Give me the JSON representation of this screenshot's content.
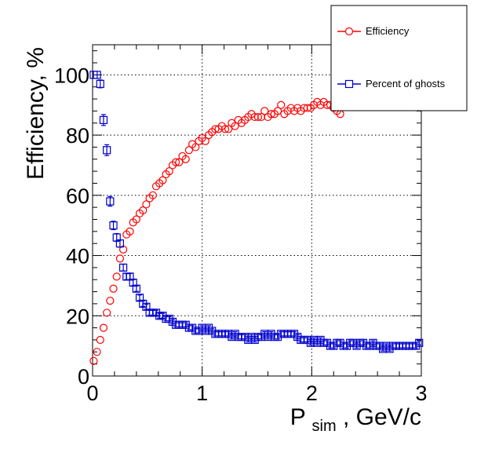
{
  "chart_data": {
    "type": "scatter",
    "title": "",
    "xlabel": {
      "main": "P",
      "sub": "sim",
      "rest": ", GeV/c"
    },
    "ylabel": "Efficiency, %",
    "xlim": [
      0,
      3
    ],
    "ylim": [
      0,
      110
    ],
    "xticks": [
      "0",
      "1",
      "2",
      "3"
    ],
    "yticks": [
      "0",
      "20",
      "40",
      "60",
      "80",
      "100"
    ],
    "grid": true,
    "legend_position": "top-right",
    "series": [
      {
        "name": "Efficiency",
        "color": "#ff0000",
        "marker": "circle",
        "x": [
          0.01,
          0.04,
          0.07,
          0.1,
          0.13,
          0.16,
          0.19,
          0.22,
          0.25,
          0.28,
          0.31,
          0.34,
          0.37,
          0.4,
          0.43,
          0.46,
          0.49,
          0.52,
          0.55,
          0.58,
          0.61,
          0.64,
          0.67,
          0.7,
          0.73,
          0.76,
          0.79,
          0.82,
          0.85,
          0.88,
          0.91,
          0.94,
          0.97,
          1.0,
          1.03,
          1.06,
          1.09,
          1.12,
          1.15,
          1.18,
          1.21,
          1.24,
          1.27,
          1.3,
          1.33,
          1.36,
          1.39,
          1.42,
          1.45,
          1.48,
          1.51,
          1.54,
          1.57,
          1.6,
          1.63,
          1.66,
          1.69,
          1.72,
          1.75,
          1.78,
          1.81,
          1.84,
          1.87,
          1.9,
          1.93,
          1.96,
          1.99,
          2.02,
          2.05,
          2.08,
          2.11,
          2.14,
          2.17,
          2.2,
          2.23,
          2.26
        ],
        "values": [
          5,
          8,
          12,
          16,
          21,
          25,
          29,
          33,
          39,
          42,
          47,
          48,
          51,
          52,
          54,
          55,
          57,
          59,
          60,
          63,
          64,
          65,
          67,
          68,
          70,
          71,
          71,
          73,
          72,
          75,
          77,
          76,
          78,
          79,
          78,
          80,
          81,
          82,
          82,
          83,
          82,
          82,
          84,
          83,
          85,
          84,
          85,
          86,
          87,
          86,
          86,
          86,
          88,
          86,
          87,
          87,
          88,
          90,
          87,
          88,
          89,
          88,
          89,
          88,
          89,
          89,
          89,
          90,
          91,
          90,
          91,
          90,
          90,
          89,
          88,
          87
        ],
        "errors": []
      },
      {
        "name": "Percent of ghosts",
        "color": "#0000cc",
        "marker": "square",
        "x": [
          0.01,
          0.04,
          0.07,
          0.1,
          0.13,
          0.16,
          0.19,
          0.22,
          0.25,
          0.28,
          0.31,
          0.34,
          0.37,
          0.4,
          0.43,
          0.46,
          0.49,
          0.52,
          0.55,
          0.58,
          0.61,
          0.64,
          0.67,
          0.7,
          0.73,
          0.76,
          0.79,
          0.82,
          0.85,
          0.88,
          0.91,
          0.94,
          0.97,
          1.0,
          1.03,
          1.06,
          1.09,
          1.12,
          1.15,
          1.18,
          1.21,
          1.24,
          1.27,
          1.3,
          1.33,
          1.36,
          1.39,
          1.42,
          1.45,
          1.48,
          1.51,
          1.54,
          1.57,
          1.6,
          1.63,
          1.66,
          1.69,
          1.72,
          1.75,
          1.78,
          1.81,
          1.84,
          1.87,
          1.9,
          1.93,
          1.96,
          1.99,
          2.02,
          2.05,
          2.08,
          2.11,
          2.14,
          2.17,
          2.2,
          2.23,
          2.26,
          2.29,
          2.32,
          2.35,
          2.38,
          2.41,
          2.44,
          2.47,
          2.5,
          2.53,
          2.56,
          2.59,
          2.62,
          2.65,
          2.68,
          2.71,
          2.74,
          2.77,
          2.8,
          2.83,
          2.86,
          2.89,
          2.92,
          2.95,
          2.98
        ],
        "values": [
          100,
          100,
          97,
          85,
          75,
          58,
          50,
          46,
          44,
          36,
          33,
          33,
          31,
          29,
          26,
          24,
          23,
          21,
          21,
          21,
          20,
          20,
          19,
          19,
          18,
          17,
          17,
          17,
          17,
          16,
          16,
          15,
          15,
          16,
          15,
          16,
          15,
          14,
          14,
          14,
          14,
          14,
          13,
          14,
          13,
          13,
          13,
          12,
          13,
          12,
          13,
          13,
          14,
          13,
          14,
          13,
          13,
          14,
          14,
          14,
          14,
          14,
          13,
          12,
          12,
          12,
          11,
          12,
          11,
          12,
          11,
          11,
          10,
          10,
          11,
          11,
          10,
          10,
          11,
          11,
          10,
          11,
          11,
          10,
          10,
          11,
          10,
          10,
          9,
          10,
          9,
          10,
          10,
          10,
          10,
          10,
          10,
          10,
          10,
          11
        ],
        "errors": [
          0,
          0,
          1.3,
          1.8,
          1.8,
          1.6,
          1.4,
          1.3,
          1.2,
          1.1,
          1.0,
          1.0,
          1.0,
          0.9,
          0.9,
          0.9,
          0.8,
          0.8,
          0.8,
          0.8,
          0.8,
          0.8,
          0.7,
          0.7,
          0.7,
          0.7,
          0.7,
          0.7,
          0.7,
          0.7,
          0.7,
          0.7,
          0.7,
          0.7,
          0.7,
          0.7,
          0.7,
          0.7,
          0.7,
          0.7,
          0.7,
          0.7,
          0.7,
          0.7,
          0.7,
          0.7,
          0.7,
          0.7,
          0.7,
          0.7,
          0.7,
          0.7,
          0.7,
          0.7,
          0.7,
          0.7,
          0.7,
          0.7,
          0.7,
          0.7,
          0.7,
          0.7,
          0.7,
          0.7,
          0.7,
          0.7,
          0.7,
          0.7,
          0.7,
          0.7,
          0.7,
          0.7,
          0.7,
          0.7,
          0.7,
          0.7,
          0.7,
          0.7,
          0.7,
          0.7,
          0.7,
          0.7,
          0.7,
          0.7,
          0.7,
          0.7,
          0.7,
          0.7,
          0.7,
          0.7,
          0.7,
          0.7,
          0.7,
          0.7,
          0.7,
          0.7,
          0.7,
          0.7,
          0.7,
          0.7
        ]
      }
    ]
  }
}
